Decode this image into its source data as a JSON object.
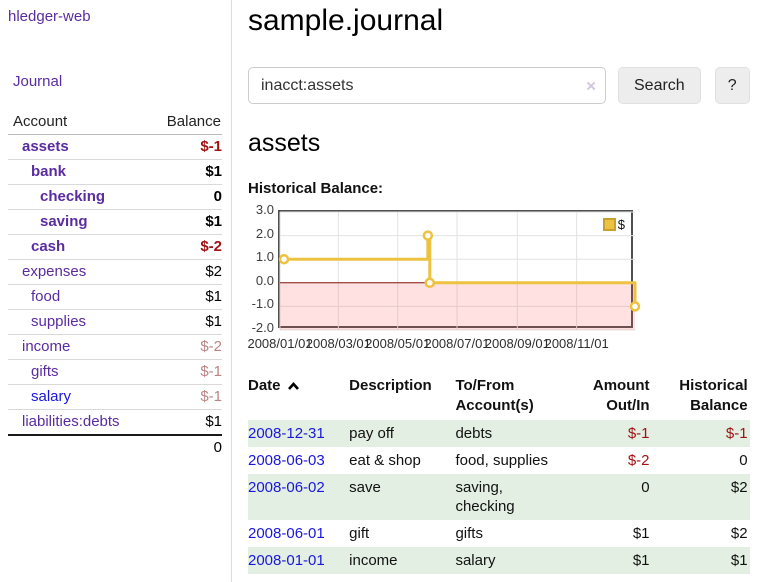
{
  "sidebar": {
    "brand": "hledger-web",
    "journal_link": "Journal",
    "col_account": "Account",
    "col_balance": "Balance",
    "accounts": [
      {
        "name": "assets",
        "balance": "$-1"
      },
      {
        "name": "bank",
        "balance": "$1"
      },
      {
        "name": "checking",
        "balance": "0"
      },
      {
        "name": "saving",
        "balance": "$1"
      },
      {
        "name": "cash",
        "balance": "$-2"
      },
      {
        "name": "expenses",
        "balance": "$2"
      },
      {
        "name": "food",
        "balance": "$1"
      },
      {
        "name": "supplies",
        "balance": "$1"
      },
      {
        "name": "income",
        "balance": "$-2"
      },
      {
        "name": "gifts",
        "balance": "$-1"
      },
      {
        "name": "salary",
        "balance": "$-1"
      },
      {
        "name": "liabilities:debts",
        "balance": "$1"
      }
    ],
    "total": "0"
  },
  "header": {
    "title": "sample.journal"
  },
  "search": {
    "value": "inacct:assets",
    "clear_icon": "×",
    "button_label": "Search",
    "help_label": "?"
  },
  "main": {
    "account_heading": "assets",
    "chart_label": "Historical Balance:"
  },
  "chart_data": {
    "type": "line",
    "title": "Historical Balance",
    "step": true,
    "series": [
      {
        "name": "$",
        "x": [
          "2008-01-01",
          "2008-06-01",
          "2008-06-03",
          "2008-12-31"
        ],
        "y": [
          1,
          2,
          0,
          -1
        ]
      }
    ],
    "xlim": [
      "2008-01-01",
      "2008-12-31"
    ],
    "ylim": [
      -2,
      3
    ],
    "xticks": [
      "2008/01/01",
      "2008/03/01",
      "2008/05/01",
      "2008/07/01",
      "2008/09/01",
      "2008/11/01"
    ],
    "yticks": [
      3.0,
      2.0,
      1.0,
      0.0,
      -1.0,
      -2.0
    ],
    "legend": {
      "label": "$",
      "position": "top-right"
    },
    "grid": true,
    "colors": {
      "line": "#edc240",
      "marker_fill": "#ffffff",
      "negative_region": "rgba(255,90,90,0.18)",
      "zero_line": "#8b1111",
      "gridline": "#e2e2e2"
    }
  },
  "register": {
    "headers": {
      "date": "Date",
      "description": "Description",
      "tofrom": "To/From Account(s)",
      "amount": "Amount Out/In",
      "balance": "Historical Balance"
    },
    "rows": [
      {
        "date": "2008-12-31",
        "description": "pay off",
        "tofrom": "debts",
        "amount": "$-1",
        "balance": "$-1"
      },
      {
        "date": "2008-06-03",
        "description": "eat & shop",
        "tofrom": "food, supplies",
        "amount": "$-2",
        "balance": "0"
      },
      {
        "date": "2008-06-02",
        "description": "save",
        "tofrom": "saving, checking",
        "amount": "0",
        "balance": "$2"
      },
      {
        "date": "2008-06-01",
        "description": "gift",
        "tofrom": "gifts",
        "amount": "$1",
        "balance": "$2"
      },
      {
        "date": "2008-01-01",
        "description": "income",
        "tofrom": "salary",
        "amount": "$1",
        "balance": "$1"
      }
    ]
  }
}
